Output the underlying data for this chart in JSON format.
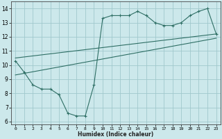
{
  "xlabel": "Humidex (Indice chaleur)",
  "bg_color": "#cce8eb",
  "grid_color": "#a0c8cc",
  "line_color": "#2e6e64",
  "ylim": [
    5.8,
    14.5
  ],
  "xlim": [
    -0.5,
    23.5
  ],
  "yticks": [
    6,
    7,
    8,
    9,
    10,
    11,
    12,
    13,
    14
  ],
  "xticks": [
    0,
    1,
    2,
    3,
    4,
    5,
    6,
    7,
    8,
    9,
    10,
    11,
    12,
    13,
    14,
    15,
    16,
    17,
    18,
    19,
    20,
    21,
    22,
    23
  ],
  "curve1_x": [
    0,
    1,
    2,
    3,
    4,
    5,
    6,
    7,
    8,
    9,
    10,
    11,
    12,
    13,
    14,
    15,
    16,
    17,
    18,
    19,
    20,
    21,
    22,
    23
  ],
  "curve1_y": [
    10.3,
    9.5,
    8.6,
    8.3,
    8.3,
    7.9,
    6.6,
    6.4,
    6.4,
    8.6,
    13.3,
    13.5,
    13.5,
    13.5,
    13.8,
    13.5,
    13.0,
    12.8,
    12.8,
    13.0,
    13.5,
    13.8,
    14.0,
    12.2
  ],
  "line1_x": [
    0,
    23
  ],
  "line1_y": [
    10.5,
    12.2
  ],
  "line2_x": [
    0,
    23
  ],
  "line2_y": [
    9.3,
    11.9
  ],
  "ytick_labels": [
    "6",
    "7",
    "8",
    "9",
    "10",
    "11",
    "12",
    "13",
    "14"
  ],
  "xtick_labels": [
    "0",
    "1",
    "2",
    "3",
    "4",
    "5",
    "6",
    "7",
    "8",
    "9",
    "10",
    "11",
    "12",
    "13",
    "14",
    "15",
    "16",
    "17",
    "18",
    "19",
    "20",
    "21",
    "22",
    "23"
  ]
}
